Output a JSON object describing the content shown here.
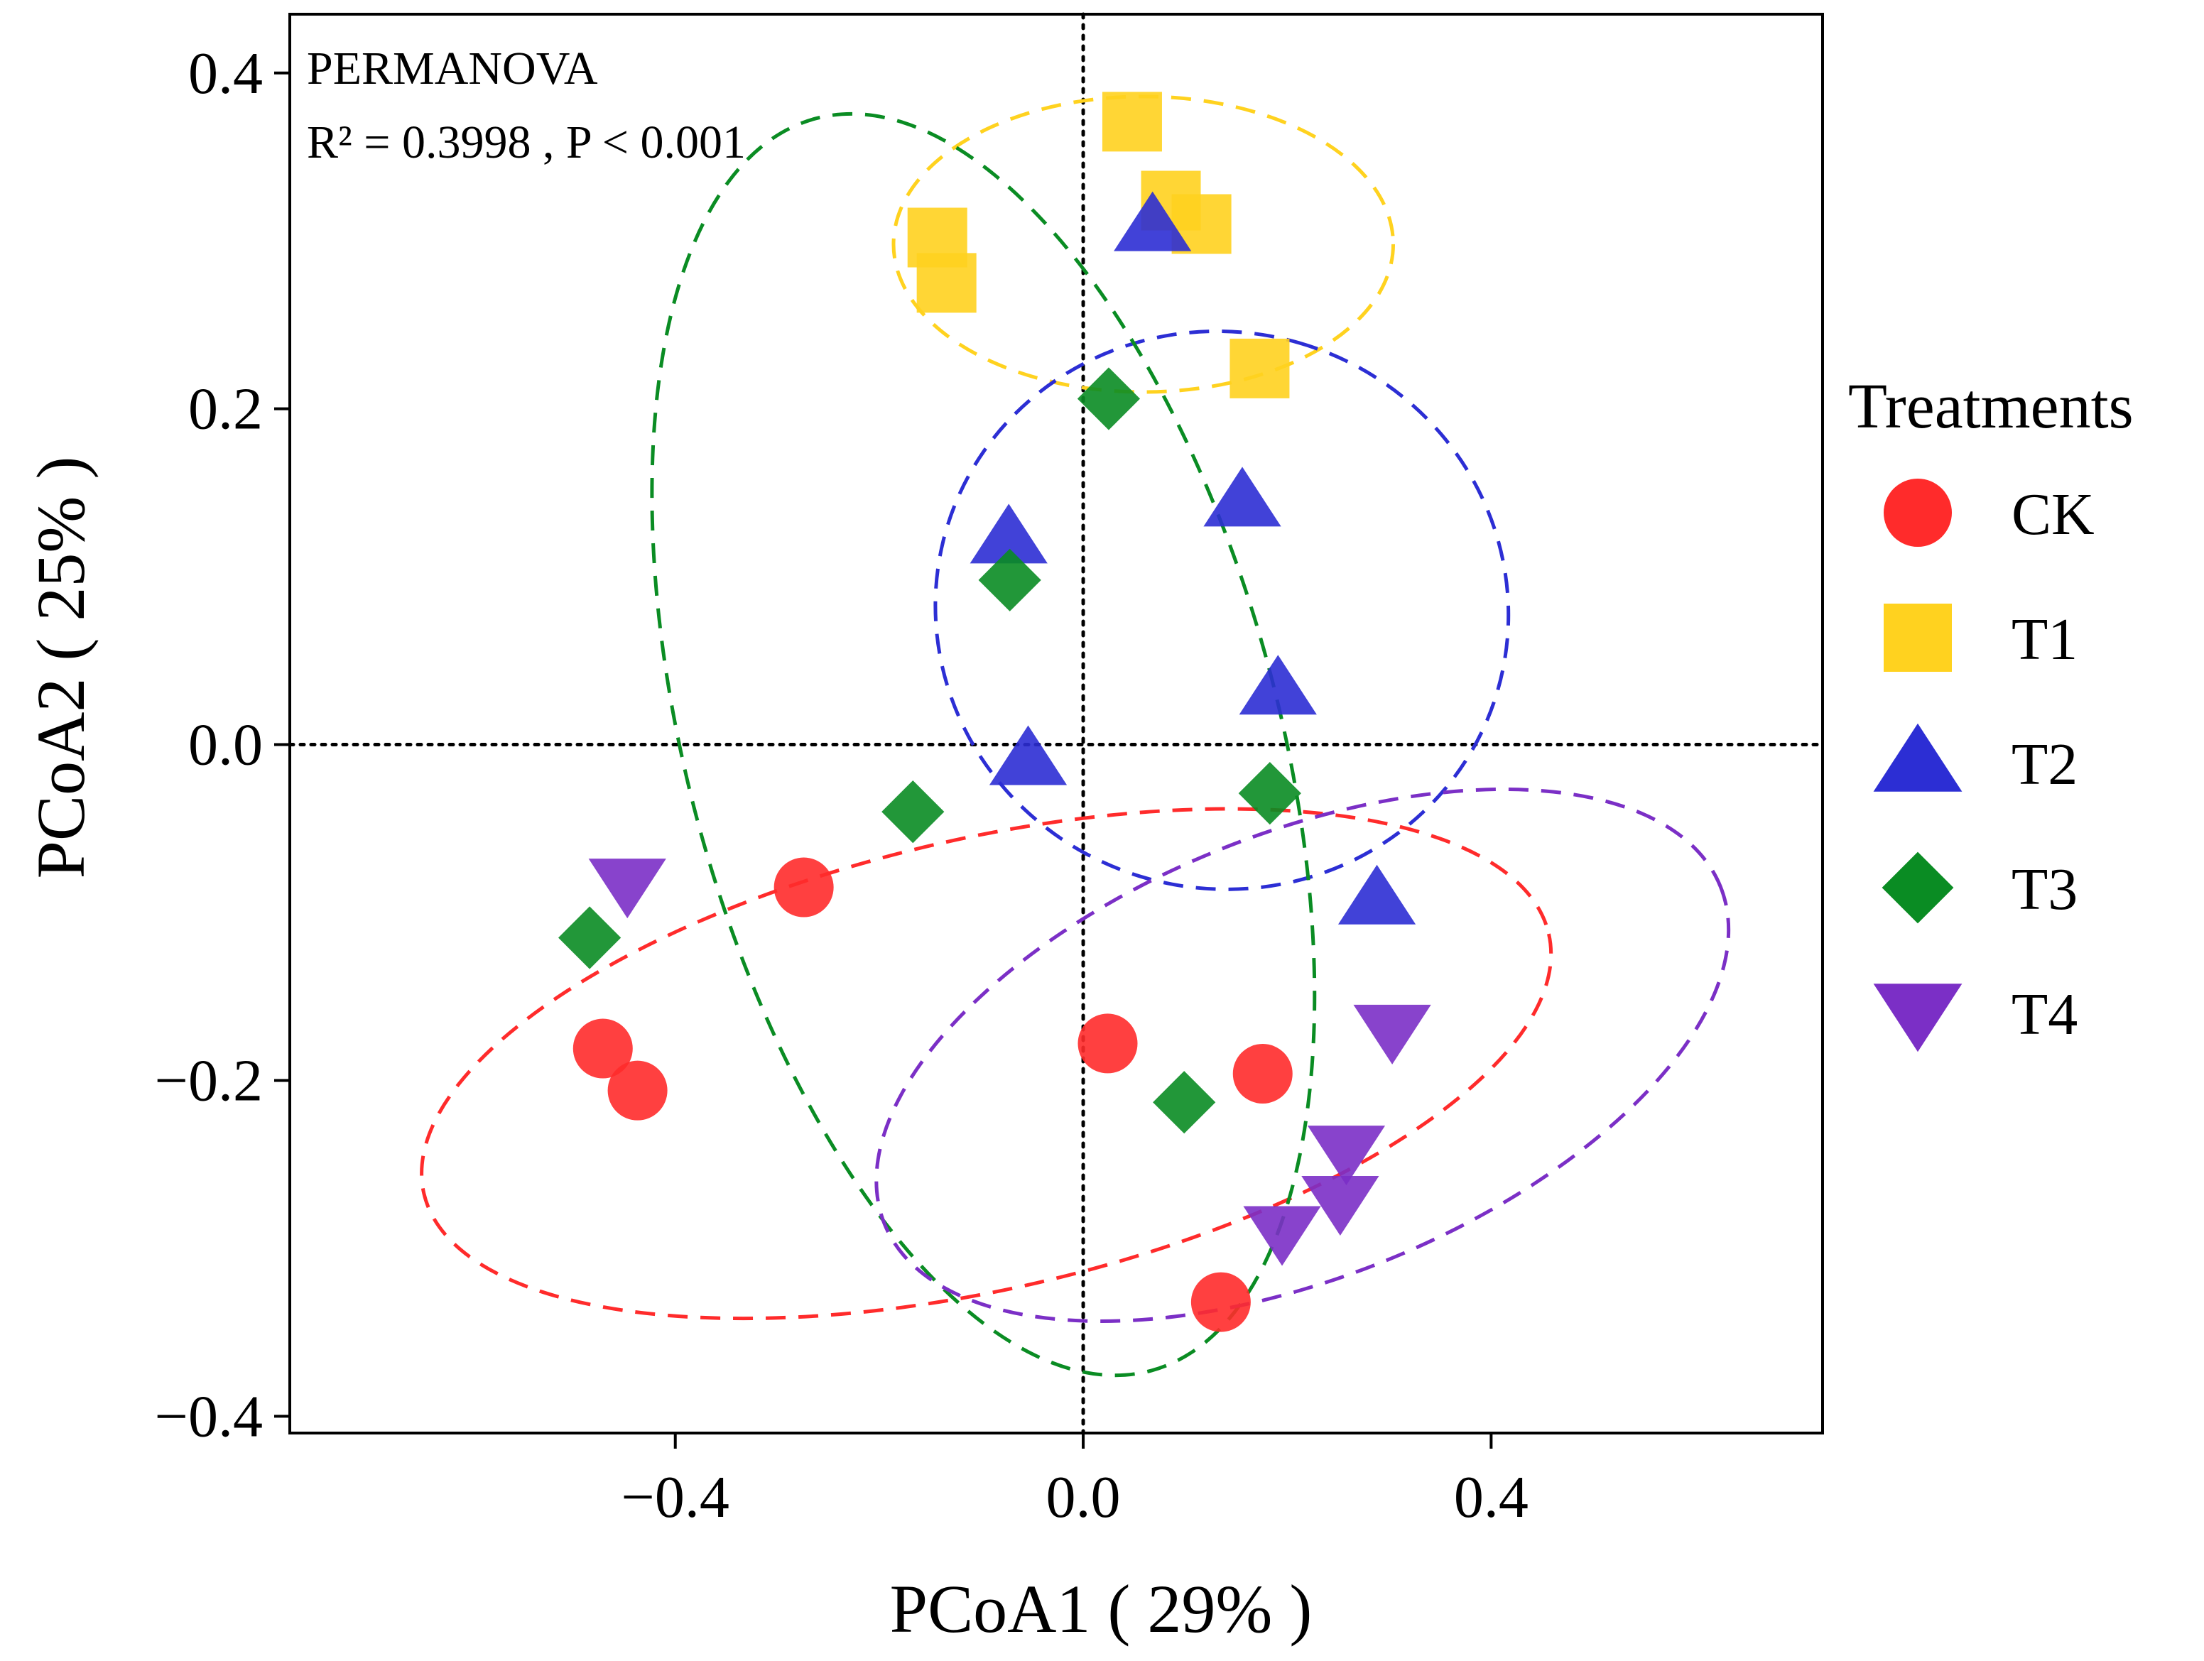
{
  "chart_data": {
    "type": "scatter",
    "title": "",
    "xlabel": "PCoA1 ( 29% )",
    "ylabel": "PCoA2 ( 25% )",
    "xlim": [
      -0.778,
      0.725
    ],
    "ylim": [
      -0.41,
      0.435
    ],
    "xticks": [
      -0.4,
      0.0,
      0.4
    ],
    "yticks": [
      0.4,
      0.2,
      0.0,
      -0.2,
      -0.4
    ],
    "xtick_labels": [
      "−0.4",
      "0.0",
      "0.4"
    ],
    "ytick_labels": [
      "0.4",
      "0.2",
      "0.0",
      "−0.2",
      "−0.4"
    ],
    "reference_lines": {
      "x": 0,
      "y": 0,
      "style": "dotted"
    },
    "grid": false,
    "annotations": [
      "PERMANOVA",
      "R² = 0.3998 , P < 0.001"
    ],
    "legend": {
      "title": "Treatments",
      "position": "right"
    },
    "series": [
      {
        "name": "CK",
        "marker": "circle",
        "color": "#ff2b2b",
        "x": [
          -0.471,
          -0.437,
          -0.274,
          0.024,
          0.176,
          0.135
        ],
        "y": [
          -0.181,
          -0.206,
          -0.085,
          -0.178,
          -0.196,
          -0.332
        ],
        "ellipse": {
          "center": [
            -0.095,
            -0.19
          ],
          "axes": [
            0.566,
            0.134
          ],
          "angle_deg": -13
        }
      },
      {
        "name": "T1",
        "marker": "square",
        "color": "#ffd21f",
        "x": [
          0.048,
          0.086,
          0.116,
          -0.143,
          -0.134,
          0.173
        ],
        "y": [
          0.371,
          0.324,
          0.31,
          0.302,
          0.275,
          0.224
        ],
        "ellipse": {
          "center": [
            0.059,
            0.298
          ],
          "axes": [
            0.245,
            0.088
          ],
          "angle_deg": 0
        }
      },
      {
        "name": "T2",
        "marker": "triangle-up",
        "color": "#2c2ed4",
        "x": [
          0.068,
          -0.073,
          0.156,
          0.191,
          -0.054,
          0.288
        ],
        "y": [
          0.309,
          0.123,
          0.145,
          0.033,
          -0.009,
          -0.092
        ],
        "ellipse": {
          "center": [
            0.136,
            0.08
          ],
          "axes": [
            0.273,
            0.171
          ],
          "angle_deg": -74
        }
      },
      {
        "name": "T3",
        "marker": "diamond",
        "color": "#0a8c23",
        "x": [
          0.025,
          -0.072,
          -0.167,
          0.183,
          -0.484,
          0.099
        ],
        "y": [
          0.206,
          0.098,
          -0.04,
          -0.029,
          -0.115,
          -0.213
        ],
        "ellipse": {
          "center": [
            -0.098,
            0.0
          ],
          "axes": [
            0.29,
            0.386
          ],
          "angle_deg": -15
        }
      },
      {
        "name": "T4",
        "marker": "triangle-down",
        "color": "#7b2fc6",
        "x": [
          -0.447,
          0.303,
          0.258,
          0.252,
          0.195
        ],
        "y": [
          -0.083,
          -0.17,
          -0.242,
          -0.272,
          -0.29
        ],
        "ellipse": {
          "center": [
            0.215,
            -0.185
          ],
          "axes": [
            0.442,
            0.132
          ],
          "angle_deg": -22
        }
      }
    ]
  }
}
